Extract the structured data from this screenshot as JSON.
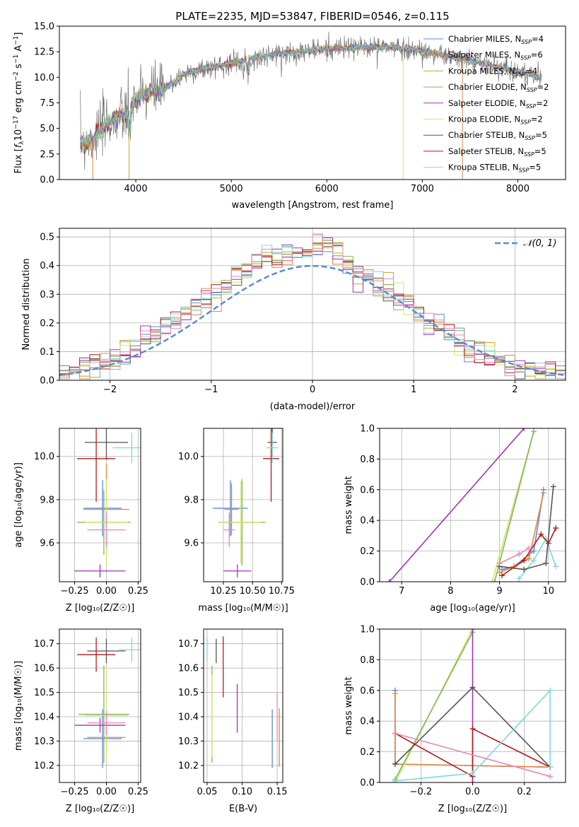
{
  "figure_title": "PLATE=2235, MJD=53847, FIBERID=0546, z=0.115",
  "colors": {
    "chabrier_miles": "#5b8bd3",
    "salpeter_miles": "#e8843a",
    "kroupa_miles": "#c9a227",
    "chabrier_elodie": "#7db95a",
    "salpeter_elodie": "#a033b6",
    "kroupa_elodie": "#d6e46e",
    "chabrier_stelib": "#555555",
    "salpeter_stelib": "#b51b1b",
    "kroupa_stelib": "#80d6df",
    "pink": "#e987b7",
    "normal": "#5b8bd3"
  },
  "chart_data": [
    {
      "id": "spectrum",
      "type": "line",
      "title": "PLATE=2235, MJD=53847, FIBERID=0546, z=0.115",
      "xlabel": "wavelength [Angstrom, rest frame]",
      "ylabel_parts": [
        "Flux [",
        "f",
        "λ",
        "10",
        "−17",
        " erg cm",
        "−2",
        " s",
        "−1",
        " A",
        "−1",
        "]"
      ],
      "xlim": [
        3200,
        8500
      ],
      "ylim": [
        0,
        15
      ],
      "xticks": [
        4000,
        5000,
        6000,
        7000,
        8000
      ],
      "yticks": [
        0.0,
        2.5,
        5.0,
        7.5,
        10.0,
        12.5,
        15.0
      ],
      "ytick_labels": [
        "0.0",
        "2.5",
        "5.0",
        "7.5",
        "10.0",
        "12.5",
        "15.0"
      ],
      "data_range": [
        3420,
        8250
      ],
      "continuum_x": [
        3420,
        3500,
        3600,
        3700,
        3800,
        3900,
        4000,
        4100,
        4200,
        4300,
        4400,
        4500,
        4700,
        4900,
        5100,
        5300,
        5500,
        5700,
        5900,
        6100,
        6300,
        6500,
        6700,
        6900,
        7100,
        7300,
        7500,
        7700,
        7900,
        8100,
        8250
      ],
      "continuum_y": [
        3.6,
        3.7,
        4.5,
        5.5,
        6.0,
        6.3,
        7.8,
        8.3,
        8.7,
        8.8,
        9.5,
        10.3,
        10.8,
        11.2,
        11.6,
        12.0,
        12.3,
        12.5,
        12.7,
        12.8,
        12.9,
        13.0,
        12.9,
        12.7,
        12.4,
        12.0,
        11.6,
        11.2,
        10.8,
        10.3,
        10.0
      ],
      "dips": [
        3550,
        3930,
        6800,
        7420
      ],
      "legend": [
        {
          "label": "Chabrier MILES, N",
          "sub": "SSP",
          "val": "=4",
          "color_key": "chabrier_miles"
        },
        {
          "label": "Salpeter MILES, N",
          "sub": "SSP",
          "val": "=6",
          "color_key": "salpeter_miles"
        },
        {
          "label": "Kroupa MILES, N",
          "sub": "SSP",
          "val": "=4",
          "color_key": "kroupa_miles"
        },
        {
          "label": "Chabrier ELODIE, N",
          "sub": "SSP",
          "val": "=2",
          "color_key": "chabrier_elodie"
        },
        {
          "label": "Salpeter ELODIE, N",
          "sub": "SSP",
          "val": "=2",
          "color_key": "salpeter_elodie"
        },
        {
          "label": "Kroupa ELODIE, N",
          "sub": "SSP",
          "val": "=2",
          "color_key": "kroupa_elodie"
        },
        {
          "label": "Chabrier STELIB, N",
          "sub": "SSP",
          "val": "=5",
          "color_key": "chabrier_stelib"
        },
        {
          "label": "Salpeter STELIB, N",
          "sub": "SSP",
          "val": "=5",
          "color_key": "salpeter_stelib"
        },
        {
          "label": "Kroupa STELIB, N",
          "sub": "SSP",
          "val": "=5",
          "color_key": "kroupa_stelib"
        }
      ],
      "legend_position": "top-right",
      "grid": false
    },
    {
      "id": "residuals",
      "type": "step",
      "xlabel": "(data-model)/error",
      "ylabel": "Normed distribution",
      "xlim": [
        -2.5,
        2.5
      ],
      "ylim": [
        0,
        0.53
      ],
      "xticks": [
        -2,
        -1,
        0,
        1,
        2
      ],
      "xtick_labels": [
        "−2",
        "−1",
        "0",
        "1",
        "2"
      ],
      "yticks": [
        0.0,
        0.1,
        0.2,
        0.3,
        0.4,
        0.5
      ],
      "ytick_labels": [
        "0.0",
        "0.1",
        "0.2",
        "0.3",
        "0.4",
        "0.5"
      ],
      "bin_width": 0.1,
      "series_colors": [
        "chabrier_miles",
        "salpeter_miles",
        "kroupa_miles",
        "chabrier_elodie",
        "salpeter_elodie",
        "kroupa_elodie",
        "chabrier_stelib",
        "salpeter_stelib",
        "kroupa_stelib",
        "pink"
      ],
      "normal_label": "𝒩(0, 1)",
      "legend_position": "top-right",
      "grid": true
    },
    {
      "id": "age_vs_z",
      "type": "errorbar",
      "xlabel": "Z [log₁₀(Z/Z☉)]",
      "ylabel": "age  [log₁₀(age/yr)]",
      "xlim": [
        -0.37,
        0.27
      ],
      "ylim": [
        9.42,
        10.13
      ],
      "xticks": [
        -0.25,
        0.0,
        0.25
      ],
      "xtick_labels": [
        "−0.25",
        "0.00",
        "0.25"
      ],
      "yticks": [
        9.6,
        9.8,
        10.0
      ],
      "ytick_labels": [
        "9.6",
        "9.8",
        "10.0"
      ],
      "points": [
        {
          "x": -0.03,
          "xerr": 0.15,
          "y": 9.76,
          "yerr": 0.13,
          "color_key": "chabrier_miles"
        },
        {
          "x": 0.0,
          "xerr": 0.18,
          "y": 9.755,
          "yerr": 0.21,
          "color_key": "salpeter_miles"
        },
        {
          "x": -0.02,
          "xerr": 0.21,
          "y": 9.695,
          "yerr": 0.15,
          "color_key": "chabrier_elodie"
        },
        {
          "x": 0.0,
          "xerr": 0.17,
          "y": 9.695,
          "yerr": 0.2,
          "color_key": "kroupa_elodie"
        },
        {
          "x": -0.05,
          "xerr": 0.2,
          "y": 9.47,
          "yerr": 0.03,
          "color_key": "salpeter_elodie"
        },
        {
          "x": 0.0,
          "xerr": 0.17,
          "y": 10.065,
          "yerr": 0.08,
          "color_key": "chabrier_stelib"
        },
        {
          "x": -0.08,
          "xerr": 0.15,
          "y": 9.99,
          "yerr": 0.2,
          "color_key": "salpeter_stelib"
        },
        {
          "x": 0.2,
          "xerr": 0.15,
          "y": 10.04,
          "yerr": 0.07,
          "color_key": "kroupa_stelib"
        },
        {
          "x": 0.0,
          "xerr": 0.15,
          "y": 9.66,
          "yerr": 0.08,
          "color_key": "pink"
        }
      ],
      "grid": true
    },
    {
      "id": "age_vs_mass",
      "type": "errorbar",
      "xlabel": "mass [log₁₀(M/M☉)]",
      "ylabel": "",
      "xlim": [
        10.08,
        10.76
      ],
      "ylim": [
        9.42,
        10.13
      ],
      "xticks": [
        10.25,
        10.5,
        10.75
      ],
      "xtick_labels": [
        "10.25",
        "10.50",
        "10.75"
      ],
      "yticks": [
        9.6,
        9.8,
        10.0
      ],
      "ytick_labels": [
        "9.6",
        "9.8",
        "10.0"
      ],
      "points": [
        {
          "x": 10.31,
          "xerr": 0.15,
          "y": 9.76,
          "yerr": 0.13,
          "color_key": "chabrier_miles"
        },
        {
          "x": 10.32,
          "xerr": 0.06,
          "y": 9.755,
          "yerr": 0.12,
          "color_key": "salpeter_miles"
        },
        {
          "x": 10.41,
          "xerr": 0.2,
          "y": 9.695,
          "yerr": 0.2,
          "color_key": "chabrier_elodie"
        },
        {
          "x": 10.4,
          "xerr": 0.18,
          "y": 9.695,
          "yerr": 0.19,
          "color_key": "kroupa_elodie"
        },
        {
          "x": 10.37,
          "xerr": 0.12,
          "y": 9.47,
          "yerr": 0.03,
          "color_key": "salpeter_elodie"
        },
        {
          "x": 10.67,
          "xerr": 0.04,
          "y": 10.065,
          "yerr": 0.08,
          "color_key": "chabrier_stelib"
        },
        {
          "x": 10.66,
          "xerr": 0.07,
          "y": 9.99,
          "yerr": 0.2,
          "color_key": "salpeter_stelib"
        },
        {
          "x": 10.67,
          "xerr": 0.05,
          "y": 10.04,
          "yerr": 0.07,
          "color_key": "kroupa_stelib"
        },
        {
          "x": 10.3,
          "xerr": 0.05,
          "y": 9.66,
          "yerr": 0.08,
          "color_key": "pink"
        }
      ],
      "grid": true
    },
    {
      "id": "mw_vs_age",
      "type": "line",
      "xlabel": "age  [log₁₀(age/yr)]",
      "ylabel": "mass weight",
      "xlim": [
        6.55,
        10.35
      ],
      "ylim": [
        0,
        1
      ],
      "xticks": [
        7,
        8,
        9,
        10
      ],
      "xtick_labels": [
        "7",
        "8",
        "9",
        "10"
      ],
      "yticks": [
        0.0,
        0.2,
        0.4,
        0.6,
        0.8,
        1.0
      ],
      "ytick_labels": [
        "0.0",
        "0.2",
        "0.4",
        "0.6",
        "0.8",
        "1.0"
      ],
      "series": [
        {
          "color_key": "salpeter_elodie",
          "points": [
            [
              6.75,
              0
            ],
            [
              9.5,
              1.0
            ]
          ]
        },
        {
          "color_key": "kroupa_elodie",
          "points": [
            [
              8.85,
              0
            ],
            [
              9.7,
              0.98
            ]
          ]
        },
        {
          "color_key": "chabrier_elodie",
          "points": [
            [
              8.9,
              0.0
            ],
            [
              9.7,
              0.98
            ]
          ]
        },
        {
          "color_key": "chabrier_miles",
          "points": [
            [
              9.05,
              0.08
            ],
            [
              9.3,
              0.1
            ],
            [
              9.7,
              0.2
            ],
            [
              9.9,
              0.6
            ]
          ]
        },
        {
          "color_key": "salpeter_miles",
          "points": [
            [
              9.0,
              0.06
            ],
            [
              9.3,
              0.1
            ],
            [
              9.6,
              0.15
            ],
            [
              9.9,
              0.58
            ]
          ]
        },
        {
          "color_key": "kroupa_stelib",
          "points": [
            [
              9.4,
              0.02
            ],
            [
              9.7,
              0.14
            ],
            [
              9.95,
              0.28
            ],
            [
              10.15,
              0.1
            ]
          ]
        },
        {
          "color_key": "salpeter_stelib",
          "points": [
            [
              9.05,
              0.04
            ],
            [
              9.5,
              0.14
            ],
            [
              9.85,
              0.31
            ],
            [
              10.0,
              0.25
            ],
            [
              10.15,
              0.35
            ]
          ]
        },
        {
          "color_key": "chabrier_stelib",
          "points": [
            [
              9.0,
              0.1
            ],
            [
              9.5,
              0.08
            ],
            [
              9.95,
              0.12
            ],
            [
              10.1,
              0.62
            ]
          ]
        },
        {
          "color_key": "pink",
          "points": [
            [
              9.0,
              0.12
            ],
            [
              9.4,
              0.18
            ],
            [
              9.6,
              0.22
            ]
          ]
        }
      ],
      "grid": true
    },
    {
      "id": "mass_vs_z",
      "type": "errorbar",
      "xlabel": "Z [log₁₀(Z/Z☉)]",
      "ylabel": "mass [log₁₀(M/M☉)]",
      "xlim": [
        -0.37,
        0.27
      ],
      "ylim": [
        10.13,
        10.76
      ],
      "xticks": [
        -0.25,
        0.0,
        0.25
      ],
      "xtick_labels": [
        "−0.25",
        "0.00",
        "0.25"
      ],
      "yticks": [
        10.2,
        10.3,
        10.4,
        10.5,
        10.6,
        10.7
      ],
      "ytick_labels": [
        "10.2",
        "10.3",
        "10.4",
        "10.5",
        "10.6",
        "10.7"
      ],
      "points": [
        {
          "x": -0.03,
          "xerr": 0.15,
          "y": 10.31,
          "yerr": 0.12,
          "color_key": "chabrier_miles"
        },
        {
          "x": 0.0,
          "xerr": 0.15,
          "y": 10.315,
          "yerr": 0.08,
          "color_key": "salpeter_miles"
        },
        {
          "x": -0.02,
          "xerr": 0.2,
          "y": 10.41,
          "yerr": 0.2,
          "color_key": "chabrier_elodie"
        },
        {
          "x": 0.0,
          "xerr": 0.17,
          "y": 10.405,
          "yerr": 0.2,
          "color_key": "kroupa_elodie"
        },
        {
          "x": -0.05,
          "xerr": 0.2,
          "y": 10.365,
          "yerr": 0.03,
          "color_key": "salpeter_elodie"
        },
        {
          "x": 0.0,
          "xerr": 0.15,
          "y": 10.67,
          "yerr": 0.05,
          "color_key": "chabrier_stelib"
        },
        {
          "x": -0.08,
          "xerr": 0.15,
          "y": 10.655,
          "yerr": 0.07,
          "color_key": "salpeter_stelib"
        },
        {
          "x": 0.2,
          "xerr": 0.1,
          "y": 10.675,
          "yerr": 0.05,
          "color_key": "kroupa_stelib"
        },
        {
          "x": 0.0,
          "xerr": 0.15,
          "y": 10.375,
          "yerr": 0.05,
          "color_key": "pink"
        }
      ],
      "grid": true
    },
    {
      "id": "mass_vs_ebv",
      "type": "errorbar",
      "xlabel": "E(B-V)",
      "ylabel": "",
      "xlim": [
        0.045,
        0.158
      ],
      "ylim": [
        10.13,
        10.76
      ],
      "xticks": [
        0.05,
        0.1,
        0.15
      ],
      "xtick_labels": [
        "0.05",
        "0.10",
        "0.15"
      ],
      "yticks": [
        10.2,
        10.3,
        10.4,
        10.5,
        10.6,
        10.7
      ],
      "ytick_labels": [
        "10.2",
        "10.3",
        "10.4",
        "10.5",
        "10.6",
        "10.7"
      ],
      "points": [
        {
          "x": 0.143,
          "xerr": 0,
          "y": 10.31,
          "yerr": 0.12,
          "color_key": "chabrier_miles"
        },
        {
          "x": 0.153,
          "xerr": 0,
          "y": 10.315,
          "yerr": 0.12,
          "color_key": "salpeter_miles"
        },
        {
          "x": 0.057,
          "xerr": 0,
          "y": 10.41,
          "yerr": 0.2,
          "color_key": "chabrier_elodie"
        },
        {
          "x": 0.057,
          "xerr": 0,
          "y": 10.405,
          "yerr": 0.17,
          "color_key": "kroupa_elodie"
        },
        {
          "x": 0.093,
          "xerr": 0,
          "y": 10.435,
          "yerr": 0.1,
          "color_key": "salpeter_elodie"
        },
        {
          "x": 0.063,
          "xerr": 0,
          "y": 10.67,
          "yerr": 0.05,
          "color_key": "chabrier_stelib"
        },
        {
          "x": 0.073,
          "xerr": 0,
          "y": 10.605,
          "yerr": 0.125,
          "color_key": "salpeter_stelib"
        },
        {
          "x": 0.05,
          "xerr": 0,
          "y": 10.675,
          "yerr": 0.05,
          "color_key": "kroupa_stelib"
        },
        {
          "x": 0.15,
          "xerr": 0,
          "y": 10.4,
          "yerr": 0.1,
          "color_key": "pink"
        }
      ],
      "grid": true
    },
    {
      "id": "mw_vs_z",
      "type": "line",
      "xlabel": "Z [log₁₀(Z/Z☉)]",
      "ylabel": "mass weight",
      "xlim": [
        -0.36,
        0.36
      ],
      "ylim": [
        0,
        1
      ],
      "xticks": [
        -0.2,
        0.0,
        0.2
      ],
      "xtick_labels": [
        "−0.2",
        "0.0",
        "0.2"
      ],
      "yticks": [
        0.0,
        0.2,
        0.4,
        0.6,
        0.8,
        1.0
      ],
      "ytick_labels": [
        "0.0",
        "0.2",
        "0.4",
        "0.6",
        "0.8",
        "1.0"
      ],
      "series": [
        {
          "color_key": "chabrier_miles",
          "points": [
            [
              -0.3,
              0.6
            ],
            [
              -0.3,
              0.12
            ],
            [
              0.3,
              0.1
            ]
          ]
        },
        {
          "color_key": "salpeter_miles",
          "points": [
            [
              -0.3,
              0.58
            ],
            [
              -0.3,
              0.12
            ],
            [
              0.3,
              0.1
            ]
          ]
        },
        {
          "color_key": "kroupa_elodie",
          "points": [
            [
              -0.3,
              0.0
            ],
            [
              0.0,
              1.0
            ]
          ]
        },
        {
          "color_key": "chabrier_elodie",
          "points": [
            [
              -0.3,
              0.02
            ],
            [
              0.0,
              0.98
            ]
          ]
        },
        {
          "color_key": "salpeter_elodie",
          "points": [
            [
              0.0,
              0.0
            ],
            [
              0.0,
              1.0
            ]
          ]
        },
        {
          "color_key": "chabrier_stelib",
          "points": [
            [
              -0.3,
              0.12
            ],
            [
              0.0,
              0.62
            ],
            [
              0.3,
              0.1
            ]
          ]
        },
        {
          "color_key": "salpeter_stelib",
          "points": [
            [
              -0.3,
              0.32
            ],
            [
              0.0,
              0.04
            ],
            [
              0.0,
              0.35
            ],
            [
              0.3,
              0.1
            ]
          ]
        },
        {
          "color_key": "kroupa_stelib",
          "points": [
            [
              -0.3,
              0.01
            ],
            [
              0.0,
              0.06
            ],
            [
              0.3,
              0.6
            ],
            [
              0.3,
              0.1
            ]
          ]
        },
        {
          "color_key": "pink",
          "points": [
            [
              -0.3,
              0.32
            ],
            [
              0.3,
              0.04
            ]
          ]
        }
      ],
      "grid": true
    }
  ]
}
